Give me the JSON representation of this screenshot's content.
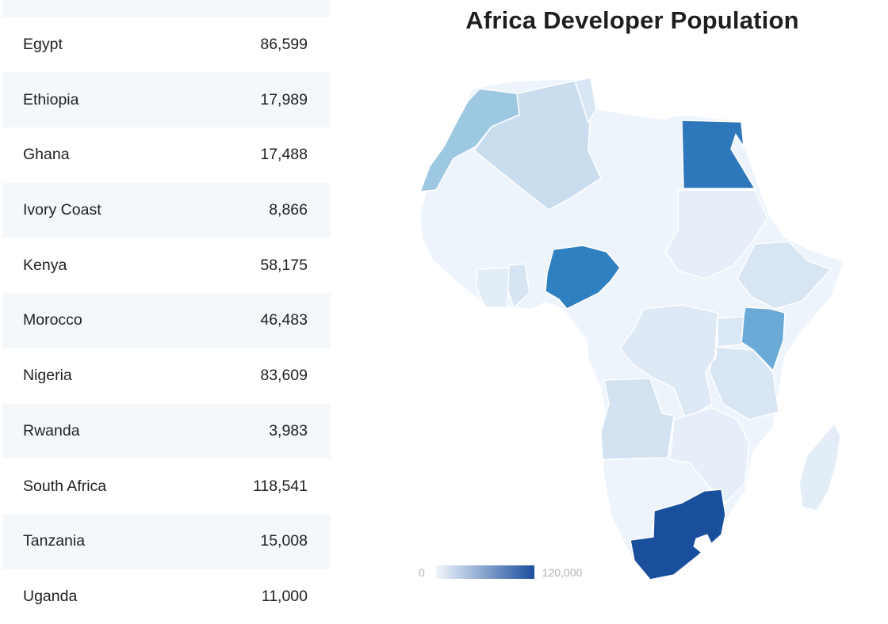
{
  "title": "Africa Developer Population",
  "rows": [
    {
      "country": "",
      "value": ""
    },
    {
      "country": "Egypt",
      "value": "86,599"
    },
    {
      "country": "Ethiopia",
      "value": "17,989"
    },
    {
      "country": "Ghana",
      "value": "17,488"
    },
    {
      "country": "Ivory Coast",
      "value": "8,866"
    },
    {
      "country": "Kenya",
      "value": "58,175"
    },
    {
      "country": "Morocco",
      "value": "46,483"
    },
    {
      "country": "Nigeria",
      "value": "83,609"
    },
    {
      "country": "Rwanda",
      "value": "3,983"
    },
    {
      "country": "South Africa",
      "value": "118,541"
    },
    {
      "country": "Tanzania",
      "value": "15,008"
    },
    {
      "country": "Uganda",
      "value": "11,000"
    }
  ],
  "legend": {
    "min": "0",
    "max": "120,000"
  },
  "colors": {
    "low": "#f1f6fc",
    "high": "#1a4f9e"
  }
}
